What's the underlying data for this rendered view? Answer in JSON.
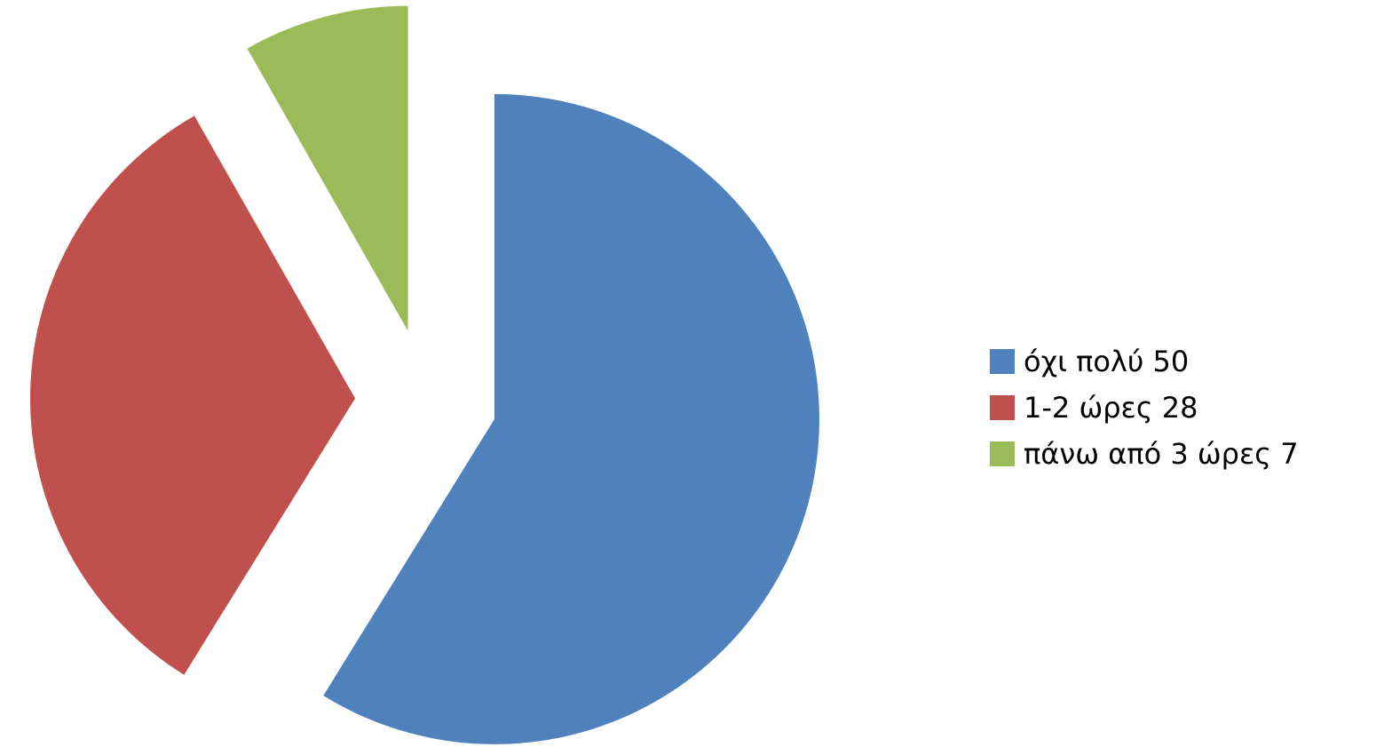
{
  "chart_data": {
    "type": "pie",
    "categories": [
      "όχι πολύ 50",
      "1-2 ώρες 28",
      "πάνω από 3 ώρες 7"
    ],
    "values": [
      50,
      28,
      7
    ],
    "colors": [
      "#4F81BD",
      "#C0504D",
      "#9BBB59"
    ],
    "exploded": true,
    "start_angle": "12 o'clock",
    "direction": "clockwise",
    "legend_position": "right",
    "title": ""
  },
  "legend": {
    "items": [
      {
        "label": "όχι πολύ 50",
        "color": "#4F81BD"
      },
      {
        "label": "1-2 ώρες 28",
        "color": "#C0504D"
      },
      {
        "label": "πάνω από 3 ώρες 7",
        "color": "#9BBB59"
      }
    ]
  }
}
